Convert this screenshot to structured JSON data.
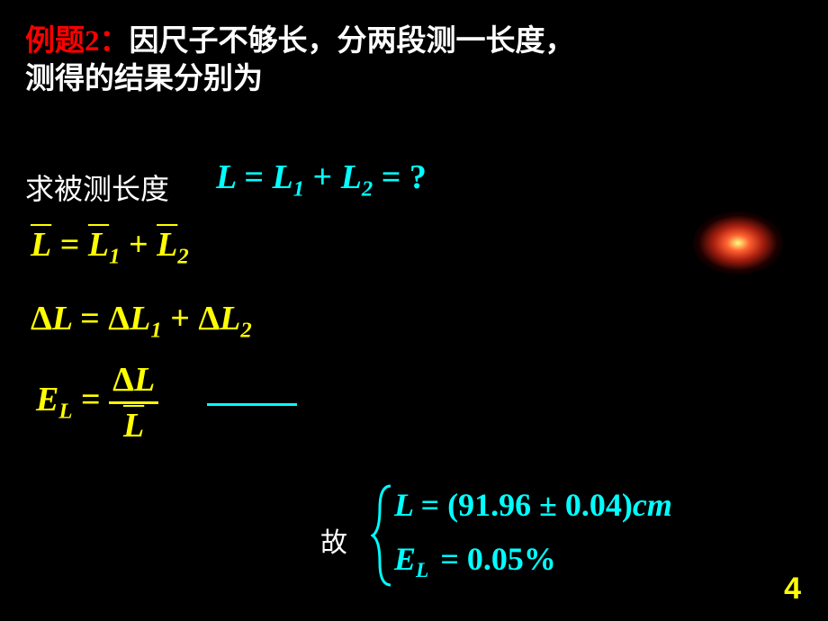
{
  "title_label": "例题2：",
  "title_rest": "因尺子不够长，分两段测一长度，",
  "title_line2": "测得的结果分别为",
  "qiu_label": "求被测长度",
  "eq_main_html": "L <span class='norm'>=</span> L<span class='sub'>1</span> <span class='norm'>+</span> L<span class='sub'>2</span> <span class='norm'>= ?</span>",
  "eq_lbar_html": "<span class='overline'>L</span>&nbsp;<span class='norm'>=</span>&nbsp;<span class='overline'>L</span><span class='sub'>1</span> <span class='norm'>+</span> <span class='overline'>L</span><span class='sub'>2</span>",
  "eq_dl_html": "<span class='norm'>Δ</span>L <span class='norm'>=</span> <span class='norm'>Δ</span>L<span class='sub'>1</span> <span class='norm'>+</span> <span class='norm'>Δ</span>L<span class='sub'>2</span>",
  "eq_el_lhs": "E<span class='sub'>L</span> <span class='norm'>=</span>&nbsp;",
  "eq_el_num": "<span class='norm'>Δ</span>L",
  "eq_el_den": "<span class='overline'>L</span>",
  "gu_label": "故",
  "result_L": "L <span class='norm'>= (91.96 ± 0.04)</span>cm",
  "result_E": "E<span class='sub' style='padding-right:4px'>L</span> <span class='norm'>= 0.05%</span>",
  "page_number": "4",
  "colors": {
    "background": "#000000",
    "red": "#ff0000",
    "white": "#ffffff",
    "cyan": "#00ffff",
    "yellow": "#ffff00"
  }
}
